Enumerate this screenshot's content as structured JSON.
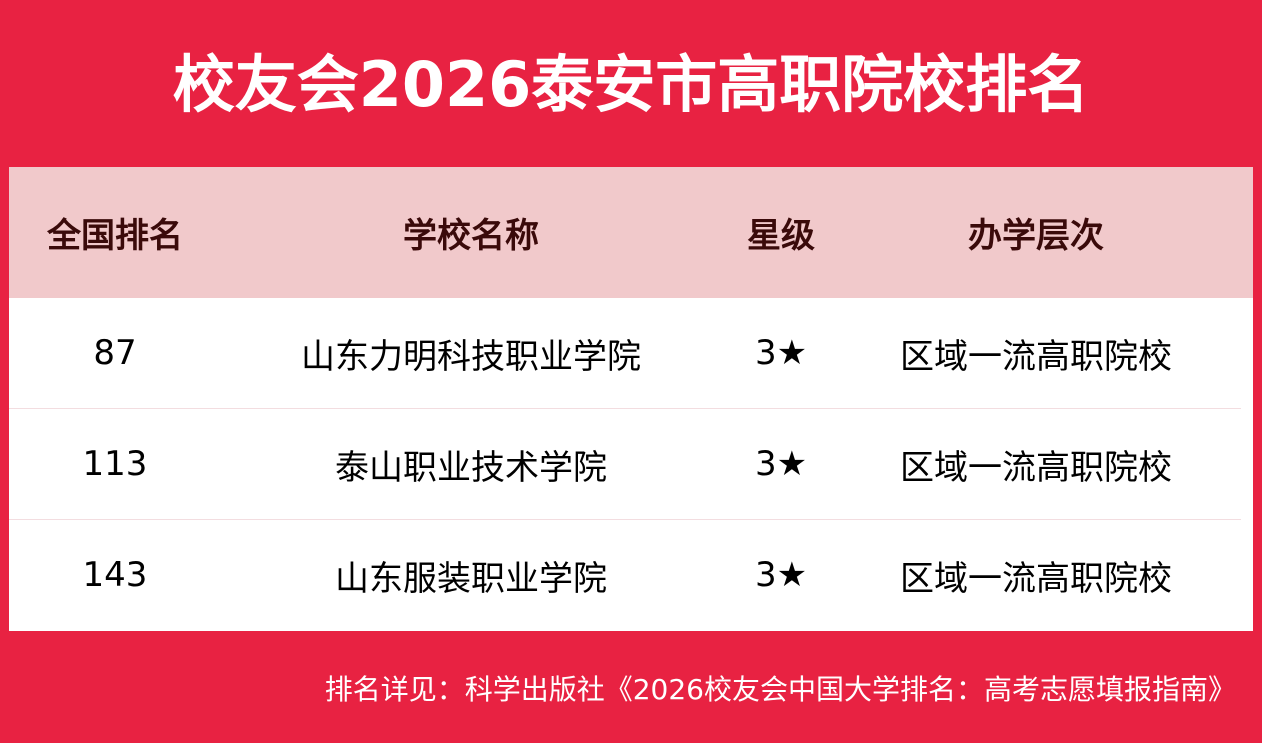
{
  "title": "校友会2026泰安市高职院校排名",
  "headers": [
    "全国排名",
    "学校名称",
    "星级",
    "办学层次"
  ],
  "rows": [
    [
      "87",
      "山东力明科技职业学院",
      "3★",
      "区域一流高职院校"
    ],
    [
      "113",
      "泰山职业技术学院",
      "3★",
      "区域一流高职院校"
    ],
    [
      "143",
      "山东服装职业学院",
      "3★",
      "区域一流高职院校"
    ]
  ],
  "footer": "排名详见：科学出版社《2026校友会中国大学排名：高考志愿填报指南》"
}
